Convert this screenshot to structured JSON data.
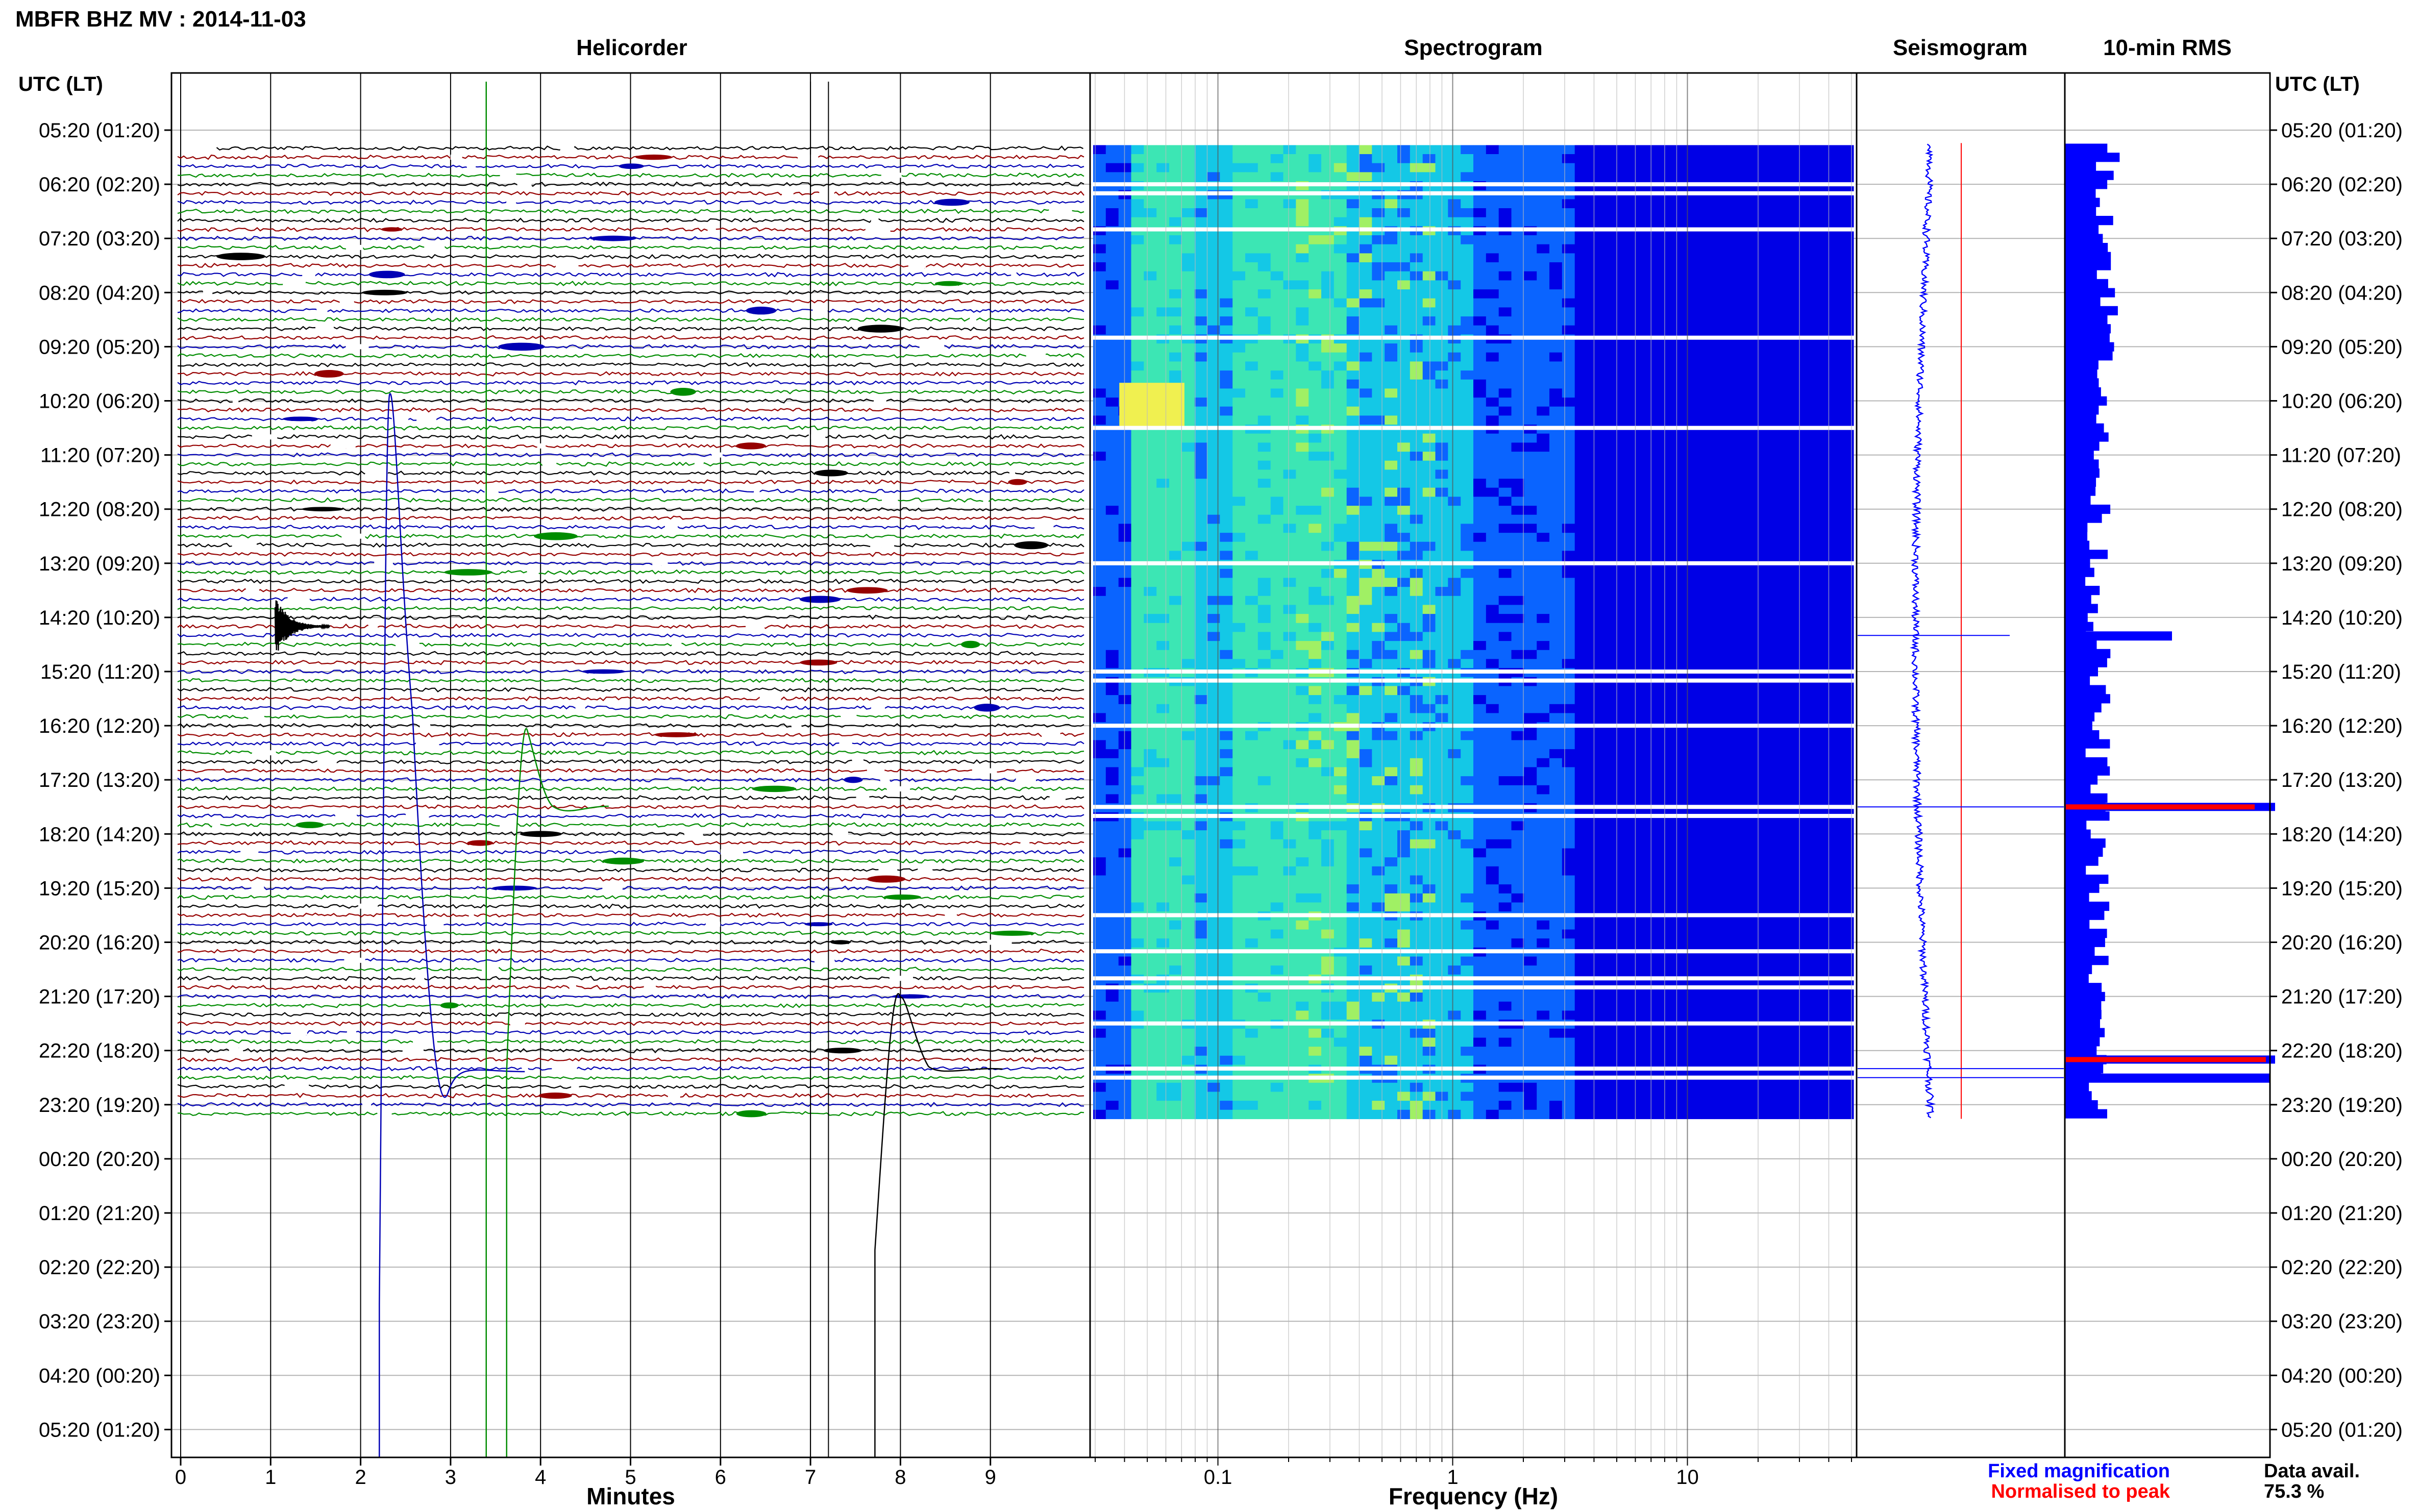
{
  "header": {
    "title": "MBFR BHZ MV : 2014-11-03",
    "panel_titles": [
      "Helicorder",
      "Spectrogram",
      "Seismogram",
      "10-min RMS"
    ],
    "left_axis_title": "UTC (LT)",
    "right_axis_title": "UTC (LT)"
  },
  "footer": {
    "legend_fixed": "Fixed magnification",
    "legend_normalised": "Normalised to peak",
    "data_avail_label": "Data avail.",
    "data_avail_value": "75.3 %"
  },
  "colors": {
    "trace_black": "#000000",
    "trace_blue": "#0000b4",
    "trace_red": "#960000",
    "trace_green": "#008c00",
    "rms_blue": "#0000ff",
    "normalised_red": "#ff0000",
    "gridline": "#b4b4b4"
  },
  "chart_data": [
    {
      "type": "line",
      "name": "helicorder",
      "title": "Helicorder",
      "xlabel": "Minutes",
      "ylabel": "UTC (LT)",
      "x_ticks": [
        0,
        1,
        2,
        3,
        4,
        5,
        6,
        7,
        8,
        9
      ],
      "xlim": [
        0,
        10
      ],
      "y_tick_labels": [
        "05:20 (01:20)",
        "06:20 (02:20)",
        "07:20 (03:20)",
        "08:20 (04:20)",
        "09:20 (05:20)",
        "10:20 (06:20)",
        "11:20 (07:20)",
        "12:20 (08:20)",
        "13:20 (09:20)",
        "14:20 (10:20)",
        "15:20 (11:20)",
        "16:20 (12:20)",
        "17:20 (13:20)",
        "18:20 (14:20)",
        "19:20 (15:20)",
        "20:20 (16:20)",
        "21:20 (17:20)",
        "22:20 (18:20)",
        "23:20 (19:20)",
        "00:20 (20:20)",
        "01:20 (21:20)",
        "02:20 (22:20)",
        "03:20 (23:20)",
        "04:20 (00:20)",
        "05:20 (01:20)"
      ],
      "line_minutes": 10,
      "trace_colors_cycle": [
        "black",
        "red",
        "blue",
        "green"
      ],
      "data_rows": 108,
      "grid": true,
      "events": [
        {
          "time_utc": "14:30",
          "minute": 1.05,
          "color": "black"
        },
        {
          "time_utc": "10:30",
          "minute": 2.35,
          "color": "blue"
        },
        {
          "time_utc": "16:30",
          "minute": 3.85,
          "color": "green"
        },
        {
          "time_utc": "21:10",
          "minute": 8.0,
          "color": "black"
        }
      ]
    },
    {
      "type": "heatmap",
      "name": "spectrogram",
      "title": "Spectrogram",
      "xlabel": "Frequency (Hz)",
      "x_scale": "log",
      "x_ticks": [
        0.1,
        1,
        10
      ],
      "xlim": [
        0.03,
        50
      ],
      "colormap": [
        "#0000e6",
        "#0a64ff",
        "#14c8e6",
        "#3ce6b4",
        "#a0f064",
        "#f0f050"
      ]
    },
    {
      "type": "line",
      "name": "seismogram",
      "title": "Seismogram",
      "series": [
        {
          "name": "Fixed magnification",
          "color": "blue"
        },
        {
          "name": "Normalised to peak",
          "color": "red"
        }
      ]
    },
    {
      "type": "bar",
      "name": "rms",
      "title": "10-min RMS",
      "orientation": "horizontal",
      "peaks_utc": [
        "17:50",
        "22:30"
      ]
    }
  ]
}
